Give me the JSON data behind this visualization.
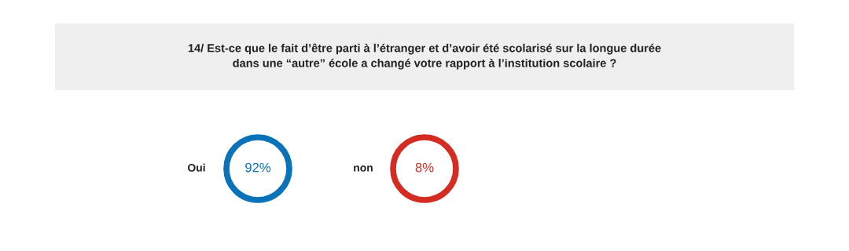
{
  "chart_data": {
    "type": "other",
    "title": "14/ Est-ce que le fait d’être parti à l’étranger et d’avoir été scolarisé sur la longue durée\ndans une “autre” école a changé votre rapport à l’institution scolaire ?",
    "categories": [
      "Oui",
      "non"
    ],
    "values": [
      92,
      8
    ],
    "value_labels": [
      "92%",
      "8%"
    ],
    "colors": [
      "#0a72b8",
      "#d42c23"
    ]
  }
}
